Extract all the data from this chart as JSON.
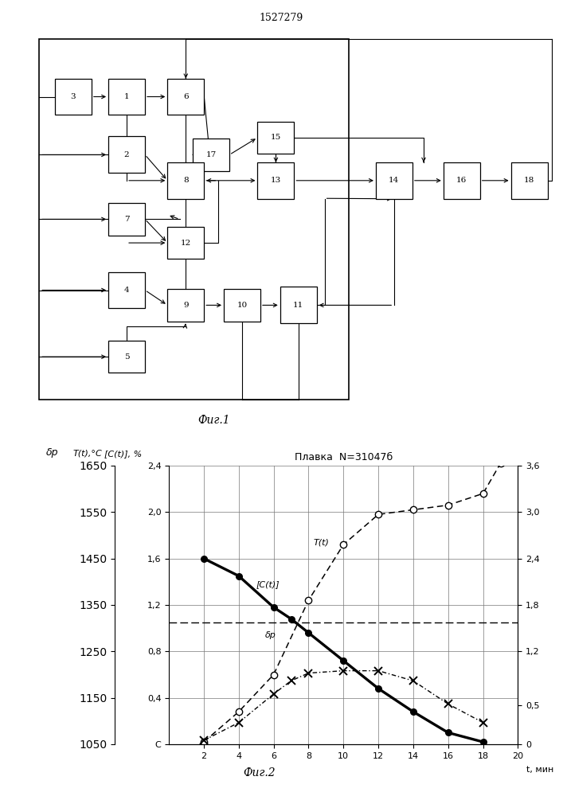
{
  "patent_number": "1527279",
  "fig1_caption": "Фиг.1",
  "fig2_caption": "Фиг.2",
  "plot_title": "Плавка  N=31047б",
  "xlabel": "t, мин",
  "x_ticks": [
    2,
    4,
    6,
    8,
    10,
    12,
    14,
    16,
    18,
    20
  ],
  "left_yticks": [
    0.0,
    0.4,
    0.8,
    1.2,
    1.6,
    2.0,
    2.4
  ],
  "left_ylabels": [
    "C",
    "0,4",
    "0,8",
    "1,2",
    "1,6",
    "2,0",
    "2,4"
  ],
  "mid_yticks": [
    1050,
    1150,
    1250,
    1350,
    1450,
    1550,
    1650
  ],
  "mid_ylabels": [
    "1050",
    "1150",
    "1250",
    "1350",
    "1450",
    "1550",
    "1650"
  ],
  "right_yticks": [
    0.0,
    0.5,
    1.2,
    1.8,
    2.4,
    3.0,
    3.6
  ],
  "right_ylabels": [
    "0",
    "0,5",
    "1,2",
    "1,8",
    "2,4",
    "3,0",
    "3,6"
  ],
  "T_x": [
    2,
    4,
    6,
    8,
    10,
    12,
    14,
    16,
    18,
    19
  ],
  "T_y_C": [
    1055,
    1120,
    1200,
    1360,
    1480,
    1545,
    1555,
    1565,
    1590,
    1655
  ],
  "CC_x": [
    2,
    4,
    6,
    7,
    8,
    10,
    12,
    14,
    16,
    18
  ],
  "CC_y": [
    0.05,
    0.28,
    0.65,
    0.82,
    0.92,
    0.95,
    0.95,
    0.82,
    0.52,
    0.28
  ],
  "dp_x": [
    2,
    4,
    6,
    7,
    8,
    10,
    12,
    14,
    16,
    18
  ],
  "dp_y": [
    1.6,
    1.45,
    1.18,
    1.08,
    0.96,
    0.72,
    0.48,
    0.28,
    0.1,
    0.02
  ],
  "hline_dp": 1.05,
  "T_min": 1050,
  "T_max": 1650,
  "C_min": 0.0,
  "C_max": 3.6,
  "dp_min": 0.0,
  "dp_max": 2.4
}
